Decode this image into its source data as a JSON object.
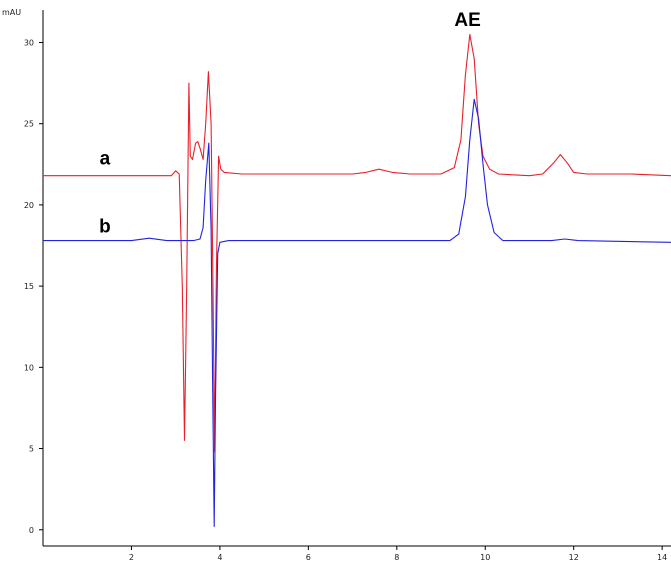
{
  "chart_data": {
    "type": "line",
    "title": "",
    "xlabel": "",
    "ylabel": "mAU",
    "xlim": [
      0,
      14.2
    ],
    "ylim": [
      -1,
      32
    ],
    "x_ticks": [
      2,
      4,
      6,
      8,
      10,
      12,
      14
    ],
    "x_tick_labels": [
      "2",
      "4",
      "6",
      "8",
      "10",
      "12",
      "14"
    ],
    "y_ticks": [
      0,
      5,
      10,
      15,
      20,
      25,
      30
    ],
    "y_tick_labels": [
      "0",
      "5",
      "10",
      "15",
      "20",
      "25",
      "30"
    ],
    "grid": false,
    "annotations": [
      {
        "text": "AE",
        "x": 9.6,
        "y": 31.0
      },
      {
        "text": "a",
        "x": 1.4,
        "y": 22.5
      },
      {
        "text": "b",
        "x": 1.4,
        "y": 18.3
      }
    ],
    "series": [
      {
        "color": "#e8202a",
        "points": [
          [
            0,
            21.8
          ],
          [
            2.9,
            21.8
          ],
          [
            3.0,
            22.1
          ],
          [
            3.08,
            21.9
          ],
          [
            3.15,
            15
          ],
          [
            3.2,
            5.5
          ],
          [
            3.25,
            15
          ],
          [
            3.3,
            27.5
          ],
          [
            3.33,
            23
          ],
          [
            3.38,
            22.8
          ],
          [
            3.45,
            23.8
          ],
          [
            3.5,
            23.9
          ],
          [
            3.55,
            23.5
          ],
          [
            3.62,
            22.8
          ],
          [
            3.68,
            25
          ],
          [
            3.74,
            28.2
          ],
          [
            3.8,
            25
          ],
          [
            3.84,
            16
          ],
          [
            3.88,
            4.8
          ],
          [
            3.92,
            16
          ],
          [
            3.97,
            23
          ],
          [
            4.02,
            22.2
          ],
          [
            4.1,
            22.0
          ],
          [
            4.5,
            21.9
          ],
          [
            7.0,
            21.9
          ],
          [
            7.3,
            22.0
          ],
          [
            7.6,
            22.2
          ],
          [
            7.9,
            22.0
          ],
          [
            8.3,
            21.9
          ],
          [
            9.0,
            21.9
          ],
          [
            9.3,
            22.3
          ],
          [
            9.45,
            24
          ],
          [
            9.55,
            28
          ],
          [
            9.65,
            30.5
          ],
          [
            9.75,
            29
          ],
          [
            9.85,
            25
          ],
          [
            9.95,
            23
          ],
          [
            10.1,
            22.2
          ],
          [
            10.3,
            21.9
          ],
          [
            11.0,
            21.8
          ],
          [
            11.3,
            21.9
          ],
          [
            11.55,
            22.6
          ],
          [
            11.7,
            23.1
          ],
          [
            11.85,
            22.6
          ],
          [
            12.0,
            22.0
          ],
          [
            12.3,
            21.9
          ],
          [
            13.3,
            21.9
          ],
          [
            14.2,
            21.8
          ]
        ]
      },
      {
        "color": "#2222e0",
        "points": [
          [
            0,
            17.8
          ],
          [
            2.0,
            17.8
          ],
          [
            2.4,
            17.95
          ],
          [
            2.8,
            17.8
          ],
          [
            3.4,
            17.8
          ],
          [
            3.55,
            17.9
          ],
          [
            3.62,
            18.6
          ],
          [
            3.68,
            21.5
          ],
          [
            3.75,
            23.8
          ],
          [
            3.8,
            18.5
          ],
          [
            3.84,
            8
          ],
          [
            3.87,
            0.2
          ],
          [
            3.9,
            8
          ],
          [
            3.95,
            17.0
          ],
          [
            4.0,
            17.7
          ],
          [
            4.2,
            17.8
          ],
          [
            9.2,
            17.8
          ],
          [
            9.4,
            18.2
          ],
          [
            9.55,
            20.5
          ],
          [
            9.65,
            24
          ],
          [
            9.75,
            26.5
          ],
          [
            9.85,
            25.3
          ],
          [
            9.95,
            22.5
          ],
          [
            10.05,
            20
          ],
          [
            10.2,
            18.3
          ],
          [
            10.4,
            17.8
          ],
          [
            11.5,
            17.8
          ],
          [
            11.8,
            17.9
          ],
          [
            12.1,
            17.8
          ],
          [
            14.2,
            17.7
          ]
        ]
      }
    ]
  }
}
